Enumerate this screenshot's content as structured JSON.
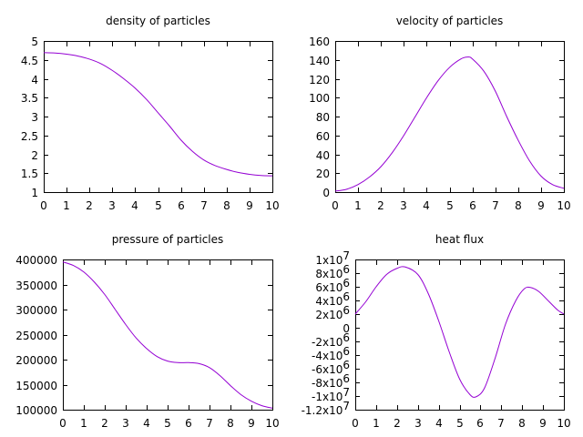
{
  "chart_data": [
    {
      "type": "line",
      "title": "density of particles",
      "xlabel": "",
      "ylabel": "",
      "xlim": [
        0,
        10
      ],
      "ylim": [
        1,
        5
      ],
      "xticks": [
        "0",
        "1",
        "2",
        "3",
        "4",
        "5",
        "6",
        "7",
        "8",
        "9",
        "10"
      ],
      "yticks": [
        "1",
        "1.5",
        "2",
        "2.5",
        "3",
        "3.5",
        "4",
        "4.5",
        "5"
      ],
      "grid": false,
      "line_color": "#9400d3",
      "series": [
        {
          "x": [
            0,
            0.5,
            1,
            1.5,
            2,
            2.5,
            3,
            3.5,
            4,
            4.5,
            5,
            5.5,
            6,
            6.5,
            7,
            7.5,
            8,
            8.5,
            9,
            9.5,
            10
          ],
          "values": [
            4.69,
            4.68,
            4.65,
            4.6,
            4.52,
            4.4,
            4.22,
            4.0,
            3.75,
            3.45,
            3.1,
            2.75,
            2.38,
            2.08,
            1.85,
            1.7,
            1.6,
            1.52,
            1.47,
            1.44,
            1.43
          ]
        }
      ]
    },
    {
      "type": "line",
      "title": "velocity of particles",
      "xlabel": "",
      "ylabel": "",
      "xlim": [
        0,
        10
      ],
      "ylim": [
        0,
        160
      ],
      "xticks": [
        "0",
        "1",
        "2",
        "3",
        "4",
        "5",
        "6",
        "7",
        "8",
        "9",
        "10"
      ],
      "yticks": [
        "0",
        "20",
        "40",
        "60",
        "80",
        "100",
        "120",
        "140",
        "160"
      ],
      "grid": false,
      "line_color": "#9400d3",
      "series": [
        {
          "x": [
            0,
            0.5,
            1,
            1.5,
            2,
            2.5,
            3,
            3.5,
            4,
            4.5,
            5,
            5.5,
            5.8,
            6,
            6.5,
            7,
            7.5,
            8,
            8.5,
            9,
            9.5,
            10
          ],
          "values": [
            1,
            3,
            8,
            16,
            27,
            42,
            60,
            80,
            100,
            118,
            132,
            141,
            143,
            141,
            128,
            107,
            80,
            55,
            33,
            17,
            8,
            4
          ]
        }
      ]
    },
    {
      "type": "line",
      "title": "pressure of particles",
      "xlabel": "",
      "ylabel": "",
      "xlim": [
        0,
        10
      ],
      "ylim": [
        100000,
        400000
      ],
      "xticks": [
        "0",
        "1",
        "2",
        "3",
        "4",
        "5",
        "6",
        "7",
        "8",
        "9",
        "10"
      ],
      "yticks": [
        "100000",
        "150000",
        "200000",
        "250000",
        "300000",
        "350000",
        "400000"
      ],
      "grid": false,
      "line_color": "#9400d3",
      "series": [
        {
          "x": [
            0,
            0.5,
            1,
            1.5,
            2,
            2.5,
            3,
            3.5,
            4,
            4.5,
            5,
            5.5,
            6,
            6.5,
            7,
            7.5,
            8,
            8.5,
            9,
            9.5,
            10
          ],
          "values": [
            395000,
            388000,
            375000,
            355000,
            330000,
            300000,
            270000,
            243000,
            222000,
            206000,
            197000,
            194000,
            194000,
            192000,
            184000,
            168000,
            148000,
            130000,
            117000,
            108000,
            103000
          ]
        }
      ]
    },
    {
      "type": "line",
      "title": "heat flux",
      "xlabel": "",
      "ylabel": "",
      "xlim": [
        0,
        10
      ],
      "ylim": [
        -12000000,
        10000000
      ],
      "xticks": [
        "0",
        "1",
        "2",
        "3",
        "4",
        "5",
        "6",
        "7",
        "8",
        "9",
        "10"
      ],
      "yticks": [
        {
          "base": "-1.2x10",
          "exp": "7",
          "value": -12000000
        },
        {
          "base": "-1x10",
          "exp": "7",
          "value": -10000000
        },
        {
          "base": "-8x10",
          "exp": "6",
          "value": -8000000
        },
        {
          "base": "-6x10",
          "exp": "6",
          "value": -6000000
        },
        {
          "base": "-4x10",
          "exp": "6",
          "value": -4000000
        },
        {
          "base": "-2x10",
          "exp": "6",
          "value": -2000000
        },
        {
          "base": "0",
          "exp": "",
          "value": 0
        },
        {
          "base": "2x10",
          "exp": "6",
          "value": 2000000
        },
        {
          "base": "4x10",
          "exp": "6",
          "value": 4000000
        },
        {
          "base": "6x10",
          "exp": "6",
          "value": 6000000
        },
        {
          "base": "8x10",
          "exp": "6",
          "value": 8000000
        },
        {
          "base": "1x10",
          "exp": "7",
          "value": 10000000
        }
      ],
      "grid": false,
      "line_color": "#9400d3",
      "series": [
        {
          "x": [
            0,
            0.5,
            1,
            1.5,
            2,
            2.4,
            3,
            3.5,
            4,
            4.5,
            5,
            5.5,
            5.8,
            6.2,
            6.7,
            7.2,
            7.7,
            8.1,
            8.4,
            8.8,
            9.3,
            9.7,
            10
          ],
          "values": [
            2000000,
            3800000,
            6000000,
            7800000,
            8700000,
            8900000,
            7800000,
            5000000,
            1000000,
            -3500000,
            -7500000,
            -9800000,
            -10100000,
            -8800000,
            -4500000,
            500000,
            4000000,
            5700000,
            5900000,
            5300000,
            3800000,
            2600000,
            2000000
          ]
        }
      ]
    }
  ]
}
